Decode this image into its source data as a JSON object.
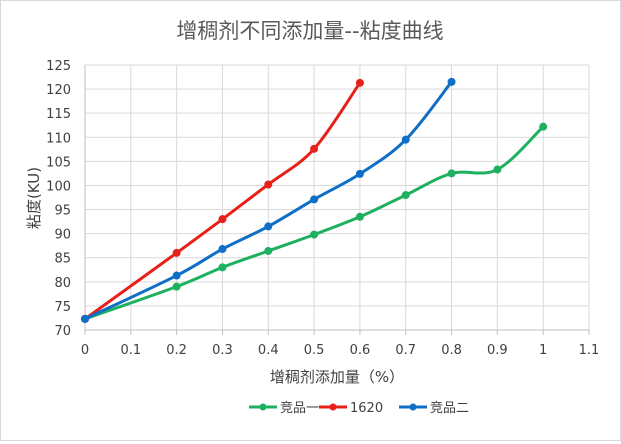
{
  "chart_data": {
    "type": "line",
    "title": "增稠剂不同添加量--粘度曲线",
    "xlabel": "增稠剂添加量（%）",
    "ylabel": "粘度(KU)",
    "xlim": [
      0,
      1.1
    ],
    "ylim": [
      70,
      125
    ],
    "x_ticks": [
      0,
      0.1,
      0.2,
      0.3,
      0.4,
      0.5,
      0.6,
      0.7,
      0.8,
      0.9,
      1,
      1.1
    ],
    "x_tick_labels": [
      "0",
      "0.1",
      "0.2",
      "0.3",
      "0.4",
      "0.5",
      "0.6",
      "0.7",
      "0.8",
      "0.9",
      "1",
      "1.1"
    ],
    "y_ticks": [
      70,
      75,
      80,
      85,
      90,
      95,
      100,
      105,
      110,
      115,
      120,
      125
    ],
    "grid": true,
    "legend_position": "bottom",
    "series": [
      {
        "name": "竞品一",
        "color": "#1db15f",
        "x": [
          0,
          0.2,
          0.3,
          0.4,
          0.5,
          0.6,
          0.7,
          0.8,
          0.9,
          1.0
        ],
        "y": [
          72.3,
          79.0,
          83.0,
          86.4,
          89.8,
          93.5,
          98.0,
          102.5,
          103.3,
          112.2
        ]
      },
      {
        "name": "1620",
        "color": "#e8201a",
        "x": [
          0,
          0.2,
          0.3,
          0.4,
          0.5,
          0.6
        ],
        "y": [
          72.3,
          86.0,
          93.0,
          100.2,
          107.6,
          121.3
        ]
      },
      {
        "name": "竞品二",
        "color": "#0f6fc6",
        "x": [
          0,
          0.2,
          0.3,
          0.4,
          0.5,
          0.6,
          0.7,
          0.8
        ],
        "y": [
          72.3,
          81.3,
          86.8,
          91.5,
          97.1,
          102.4,
          109.5,
          121.5
        ]
      }
    ]
  }
}
